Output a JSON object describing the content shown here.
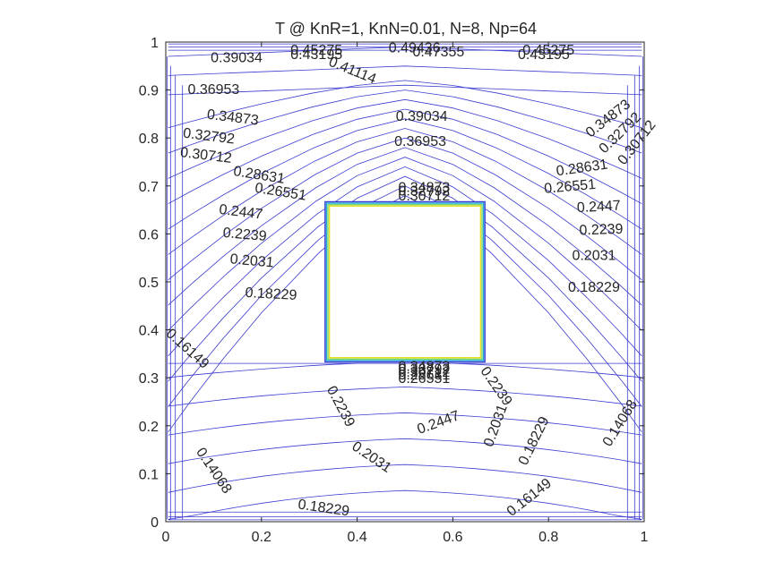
{
  "chart_data": {
    "type": "contour",
    "title": "T @ KnR=1, KnN=0.01, N=8, Np=64",
    "xlabel": "",
    "ylabel": "",
    "xlim": [
      0,
      1
    ],
    "ylim": [
      0,
      1
    ],
    "x_ticks": [
      "0",
      "0.2",
      "0.4",
      "0.6",
      "0.8",
      "1"
    ],
    "y_ticks": [
      "0",
      "0.1",
      "0.2",
      "0.3",
      "0.4",
      "0.5",
      "0.6",
      "0.7",
      "0.8",
      "0.9",
      "1"
    ],
    "grid": false,
    "contour_color": "#3b3bd0",
    "heated_block": {
      "x": [
        0.333,
        0.667
      ],
      "y": [
        0.333,
        0.667
      ],
      "edge_colors": [
        "#3b3bd0",
        "#1fa8d8",
        "#7fd86a",
        "#e8e020"
      ]
    },
    "contour_levels": [
      0.14068,
      0.16149,
      0.18229,
      0.2031,
      0.2239,
      0.2447,
      0.26551,
      0.28631,
      0.30712,
      0.32792,
      0.34873,
      0.36953,
      0.39034,
      0.41114,
      0.43195,
      0.45275
    ],
    "labels": [
      {
        "text": "0.39034",
        "x": 0.148,
        "y": 0.966,
        "angle": 0
      },
      {
        "text": "0.43195",
        "x": 0.315,
        "y": 0.973,
        "angle": 0
      },
      {
        "text": "0.45275",
        "x": 0.315,
        "y": 0.982,
        "angle": 0
      },
      {
        "text": "0.41114",
        "x": 0.39,
        "y": 0.94,
        "angle": 22
      },
      {
        "text": "0.49436",
        "x": 0.52,
        "y": 0.987,
        "angle": 0
      },
      {
        "text": "0.47355",
        "x": 0.57,
        "y": 0.979,
        "angle": 0
      },
      {
        "text": "0.43195",
        "x": 0.79,
        "y": 0.973,
        "angle": 0
      },
      {
        "text": "0.45275",
        "x": 0.8,
        "y": 0.982,
        "angle": 0
      },
      {
        "text": "0.36953",
        "x": 0.1,
        "y": 0.9,
        "angle": 0
      },
      {
        "text": "0.39034",
        "x": 0.535,
        "y": 0.844,
        "angle": 0
      },
      {
        "text": "0.36953",
        "x": 0.532,
        "y": 0.792,
        "angle": 0
      },
      {
        "text": "0.34873",
        "x": 0.14,
        "y": 0.842,
        "angle": 7
      },
      {
        "text": "0.32792",
        "x": 0.09,
        "y": 0.803,
        "angle": 7
      },
      {
        "text": "0.30712",
        "x": 0.084,
        "y": 0.763,
        "angle": 7
      },
      {
        "text": "0.28631",
        "x": 0.195,
        "y": 0.722,
        "angle": 9
      },
      {
        "text": "0.26551",
        "x": 0.24,
        "y": 0.687,
        "angle": 9
      },
      {
        "text": "0.2447",
        "x": 0.157,
        "y": 0.645,
        "angle": 7
      },
      {
        "text": "0.2239",
        "x": 0.165,
        "y": 0.598,
        "angle": 5
      },
      {
        "text": "0.2031",
        "x": 0.18,
        "y": 0.543,
        "angle": 5
      },
      {
        "text": "0.18229",
        "x": 0.22,
        "y": 0.474,
        "angle": 3
      },
      {
        "text": "0.34873",
        "x": 0.54,
        "y": 0.696,
        "angle": 0
      },
      {
        "text": "0.32792",
        "x": 0.54,
        "y": 0.688,
        "angle": 0
      },
      {
        "text": "0.30712",
        "x": 0.54,
        "y": 0.678,
        "angle": 0
      },
      {
        "text": "0.34873",
        "x": 0.925,
        "y": 0.84,
        "angle": -38
      },
      {
        "text": "0.32792",
        "x": 0.95,
        "y": 0.81,
        "angle": -44
      },
      {
        "text": "0.30712",
        "x": 0.985,
        "y": 0.79,
        "angle": -52
      },
      {
        "text": "0.28631",
        "x": 0.87,
        "y": 0.737,
        "angle": -8
      },
      {
        "text": "0.26551",
        "x": 0.845,
        "y": 0.698,
        "angle": -5
      },
      {
        "text": "0.2447",
        "x": 0.905,
        "y": 0.656,
        "angle": -3
      },
      {
        "text": "0.2239",
        "x": 0.91,
        "y": 0.608,
        "angle": -2
      },
      {
        "text": "0.2031",
        "x": 0.895,
        "y": 0.554,
        "angle": 0
      },
      {
        "text": "0.18229",
        "x": 0.895,
        "y": 0.488,
        "angle": 0
      },
      {
        "text": "0.16149",
        "x": 0.045,
        "y": 0.36,
        "angle": 42
      },
      {
        "text": "0.34873",
        "x": 0.54,
        "y": 0.323,
        "angle": 0
      },
      {
        "text": "0.32792",
        "x": 0.54,
        "y": 0.317,
        "angle": 0
      },
      {
        "text": "0.30712",
        "x": 0.54,
        "y": 0.311,
        "angle": 0
      },
      {
        "text": "0.28631",
        "x": 0.54,
        "y": 0.305,
        "angle": 0
      },
      {
        "text": "0.26551",
        "x": 0.54,
        "y": 0.298,
        "angle": 0
      },
      {
        "text": "0.2239",
        "x": 0.69,
        "y": 0.282,
        "angle": 55
      },
      {
        "text": "0.2239",
        "x": 0.365,
        "y": 0.24,
        "angle": 62
      },
      {
        "text": "0.2447",
        "x": 0.57,
        "y": 0.206,
        "angle": -20
      },
      {
        "text": "0.2031",
        "x": 0.69,
        "y": 0.2,
        "angle": -70
      },
      {
        "text": "0.18229",
        "x": 0.77,
        "y": 0.168,
        "angle": -64
      },
      {
        "text": "0.2031",
        "x": 0.43,
        "y": 0.134,
        "angle": 34
      },
      {
        "text": "0.14068",
        "x": 0.95,
        "y": 0.205,
        "angle": -58
      },
      {
        "text": "0.14068",
        "x": 0.1,
        "y": 0.106,
        "angle": 56
      },
      {
        "text": "0.18229",
        "x": 0.33,
        "y": 0.028,
        "angle": 8
      },
      {
        "text": "0.16149",
        "x": 0.76,
        "y": 0.05,
        "angle": -38
      }
    ]
  }
}
